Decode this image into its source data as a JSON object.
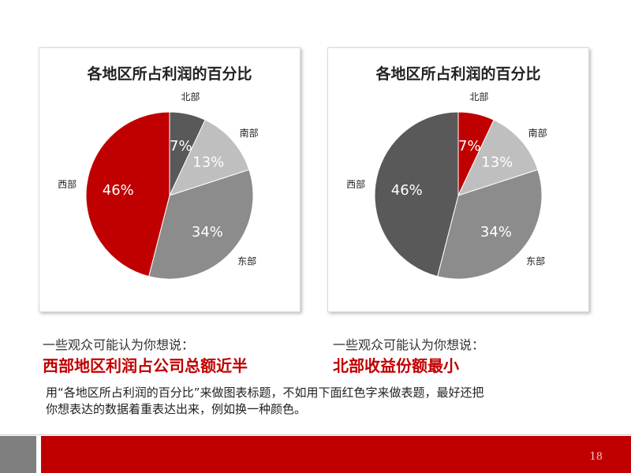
{
  "chart_data": [
    {
      "type": "pie",
      "title": "各地区所占利润的百分比",
      "categories": [
        "北部",
        "南部",
        "东部",
        "西部"
      ],
      "values": [
        7,
        13,
        34,
        46
      ],
      "value_labels": [
        "7%",
        "13%",
        "34%",
        "46%"
      ],
      "colors": [
        "#595959",
        "#bfbfbf",
        "#8c8c8c",
        "#c00000"
      ]
    },
    {
      "type": "pie",
      "title": "各地区所占利润的百分比",
      "categories": [
        "北部",
        "南部",
        "东部",
        "西部"
      ],
      "values": [
        7,
        13,
        34,
        46
      ],
      "value_labels": [
        "7%",
        "13%",
        "34%",
        "46%"
      ],
      "colors": [
        "#c00000",
        "#bfbfbf",
        "#8c8c8c",
        "#595959"
      ]
    }
  ],
  "captions": [
    {
      "intro": "一些观众可能认为你想说：",
      "headline": "西部地区利润占公司总额近半"
    },
    {
      "intro": "一些观众可能认为你想说：",
      "headline": "北部收益份额最小"
    }
  ],
  "note": {
    "line1": "用“各地区所占利润的百分比”来做图表标题，不如用下面红色字来做表题，最好还把",
    "line2": "你想表达的数据着重表达出来，例如换一种颜色。"
  },
  "footer": {
    "page_number": "18",
    "colors": {
      "gray": "#7f7f7f",
      "red": "#c00000"
    }
  }
}
